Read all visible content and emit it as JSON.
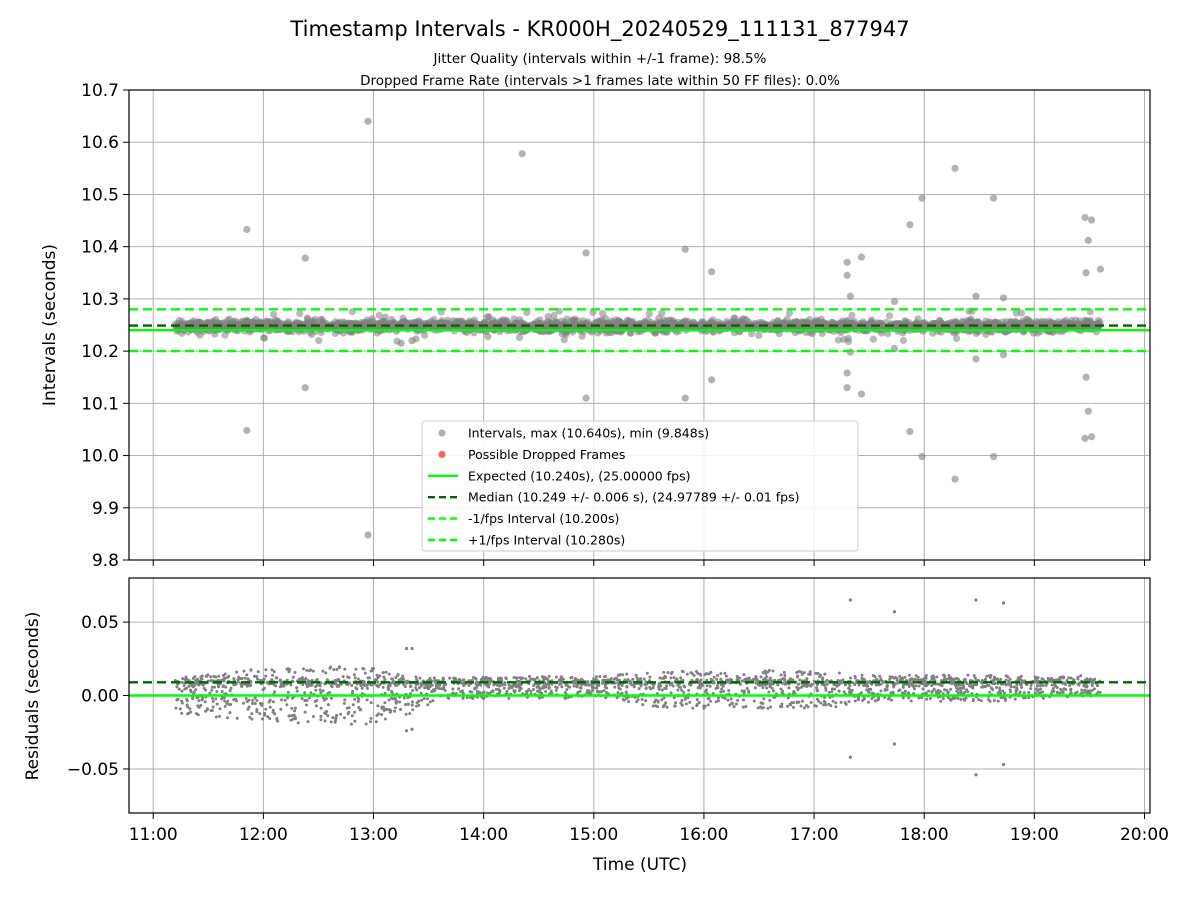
{
  "figure": {
    "title": "Timestamp Intervals - KR000H_20240529_111131_877947",
    "subtitle_1": "Jitter Quality (intervals within +/-1 frame): 98.5%",
    "subtitle_2": "Dropped Frame Rate (intervals >1 frames late within 50 FF files): 0.0%"
  },
  "colors": {
    "points": "#808080",
    "dropped": "#ff0000",
    "expected": "#00ff00",
    "median": "#006400",
    "interval_lines": "#00ff00",
    "grid": "#b0b0b0"
  },
  "chart_data": [
    {
      "type": "scatter",
      "name": "intervals-panel",
      "title": "",
      "xlabel": "",
      "ylabel": "Intervals (seconds)",
      "x_unit": "time of day (UTC, hours)",
      "xlim": [
        10.78,
        20.05
      ],
      "ylim": [
        9.8,
        10.7
      ],
      "yticks": [
        9.8,
        9.9,
        10.0,
        10.1,
        10.2,
        10.3,
        10.4,
        10.5,
        10.6,
        10.7
      ],
      "ytick_labels": [
        "9.8",
        "9.9",
        "10.0",
        "10.1",
        "10.2",
        "10.3",
        "10.4",
        "10.5",
        "10.6",
        "10.7"
      ],
      "grid": true,
      "legend_position": "lower-center",
      "band": {
        "x_start": 11.2,
        "x_end": 19.6,
        "center": 10.248,
        "spread": 0.012
      },
      "series": [
        {
          "name": "Intervals, max (10.640s), min (9.848s)",
          "style": "scatter",
          "points": [
            [
              11.85,
              10.433
            ],
            [
              11.85,
              10.048
            ],
            [
              12.38,
              10.378
            ],
            [
              12.38,
              10.13
            ],
            [
              12.95,
              10.64
            ],
            [
              12.95,
              9.848
            ],
            [
              13.25,
              10.215
            ],
            [
              13.35,
              10.22
            ],
            [
              14.35,
              10.578
            ],
            [
              14.93,
              10.388
            ],
            [
              14.93,
              10.11
            ],
            [
              15.83,
              10.395
            ],
            [
              15.83,
              10.11
            ],
            [
              16.07,
              10.352
            ],
            [
              16.07,
              10.145
            ],
            [
              17.3,
              10.37
            ],
            [
              17.3,
              10.345
            ],
            [
              17.33,
              10.305
            ],
            [
              17.3,
              10.158
            ],
            [
              17.3,
              10.13
            ],
            [
              17.33,
              10.198
            ],
            [
              17.43,
              10.38
            ],
            [
              17.43,
              10.118
            ],
            [
              17.73,
              10.295
            ],
            [
              17.73,
              10.205
            ],
            [
              17.87,
              10.442
            ],
            [
              17.87,
              10.046
            ],
            [
              17.98,
              10.493
            ],
            [
              17.98,
              9.998
            ],
            [
              18.28,
              10.55
            ],
            [
              18.28,
              9.955
            ],
            [
              18.47,
              10.305
            ],
            [
              18.47,
              10.185
            ],
            [
              18.63,
              10.493
            ],
            [
              18.63,
              9.998
            ],
            [
              18.72,
              10.302
            ],
            [
              18.72,
              10.193
            ],
            [
              19.46,
              10.456
            ],
            [
              19.47,
              10.35
            ],
            [
              19.49,
              10.412
            ],
            [
              19.47,
              10.15
            ],
            [
              19.49,
              10.085
            ],
            [
              19.46,
              10.033
            ],
            [
              19.52,
              10.451
            ],
            [
              19.52,
              10.036
            ],
            [
              19.6,
              10.357
            ]
          ]
        },
        {
          "name": "Possible Dropped Frames",
          "style": "scatter",
          "points": []
        },
        {
          "name": "Expected (10.240s), (25.00000 fps)",
          "style": "solid-line",
          "y": 10.24
        },
        {
          "name": "Median (10.249 +/- 0.006 s), (24.97789 +/- 0.01 fps)",
          "style": "dashed-line",
          "y": 10.249
        },
        {
          "name": "-1/fps Interval (10.200s)",
          "style": "dashed-line",
          "y": 10.2
        },
        {
          "name": "+1/fps Interval (10.280s)",
          "style": "dashed-line",
          "y": 10.28
        }
      ]
    },
    {
      "type": "scatter",
      "name": "residuals-panel",
      "title": "",
      "xlabel": "Time (UTC)",
      "ylabel": "Residuals (seconds)",
      "x_unit": "time of day (UTC, hours)",
      "xlim": [
        10.78,
        20.05
      ],
      "ylim": [
        -0.08,
        0.08
      ],
      "xticks": [
        11,
        12,
        13,
        14,
        15,
        16,
        17,
        18,
        19,
        20
      ],
      "xtick_labels": [
        "11:00",
        "12:00",
        "13:00",
        "14:00",
        "15:00",
        "16:00",
        "17:00",
        "18:00",
        "19:00",
        "20:00"
      ],
      "yticks": [
        0.05,
        0.0,
        -0.05
      ],
      "ytick_labels": [
        "0.05",
        "0.00",
        "−0.05"
      ],
      "grid": true,
      "zero_line": 0.0,
      "median_line": 0.009,
      "residual_band": [
        [
          11.2,
          0.0,
          0.012
        ],
        [
          11.9,
          0.0,
          0.018
        ],
        [
          12.9,
          0.0,
          0.02
        ],
        [
          13.3,
          0.0,
          0.014
        ],
        [
          13.6,
          0.005,
          0.007
        ],
        [
          15.2,
          0.006,
          0.008
        ],
        [
          15.5,
          0.004,
          0.012
        ],
        [
          16.2,
          0.004,
          0.014
        ],
        [
          17.2,
          0.004,
          0.012
        ],
        [
          17.6,
          0.005,
          0.009
        ],
        [
          18.7,
          0.005,
          0.009
        ],
        [
          19.6,
          0.006,
          0.006
        ]
      ],
      "outliers": [
        [
          17.33,
          0.065
        ],
        [
          17.33,
          -0.042
        ],
        [
          17.73,
          0.057
        ],
        [
          17.73,
          -0.033
        ],
        [
          18.47,
          0.065
        ],
        [
          18.47,
          -0.054
        ],
        [
          18.72,
          0.063
        ],
        [
          18.72,
          -0.047
        ],
        [
          13.3,
          0.032
        ],
        [
          13.35,
          0.032
        ],
        [
          13.3,
          -0.024
        ],
        [
          13.35,
          -0.023
        ]
      ]
    }
  ],
  "legend": {
    "items": [
      {
        "label": "Intervals, max (10.640s), min (9.848s)",
        "marker": "dot",
        "color": "#808080"
      },
      {
        "label": "Possible Dropped Frames",
        "marker": "dot",
        "color": "#ff0000"
      },
      {
        "label": "Expected (10.240s), (25.00000 fps)",
        "marker": "solid",
        "color": "#00ff00"
      },
      {
        "label": "Median (10.249 +/- 0.006 s), (24.97789 +/- 0.01 fps)",
        "marker": "dashed",
        "color": "#006400"
      },
      {
        "label": "-1/fps Interval (10.200s)",
        "marker": "dashed",
        "color": "#00ff00"
      },
      {
        "label": "+1/fps Interval (10.280s)",
        "marker": "dashed",
        "color": "#00ff00"
      }
    ]
  }
}
